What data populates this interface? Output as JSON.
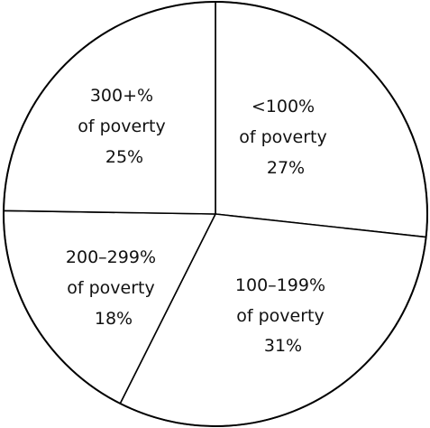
{
  "chart_data": {
    "type": "pie",
    "slices": [
      {
        "label": "<100%",
        "sublabel": "of poverty",
        "value": 27,
        "value_label": "27%"
      },
      {
        "label": "100–199%",
        "sublabel": "of poverty",
        "value": 31,
        "value_label": "31%"
      },
      {
        "label": "200–299%",
        "sublabel": "of poverty",
        "value": 18,
        "value_label": "18%"
      },
      {
        "label": "300+%",
        "sublabel": "of poverty",
        "value": 25,
        "value_label": "25%"
      }
    ],
    "start": "top",
    "direction": "clockwise",
    "colors": {
      "fill": "#ffffff",
      "stroke": "#000000",
      "text": "#111111"
    }
  }
}
